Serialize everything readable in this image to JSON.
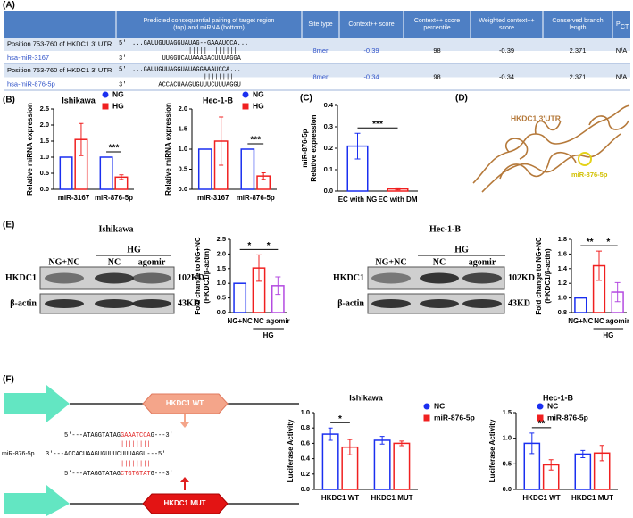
{
  "panel_labels": [
    "(A)",
    "(B)",
    "(C)",
    "(D)",
    "(E)",
    "(F)"
  ],
  "table": {
    "header": [
      "Predicted consequential pairing of target region (top) and miRNA (bottom)",
      "Site type",
      "Context++ score",
      "Context++ score percentile",
      "Weighted context++ score",
      "Conserved branch length"
    ],
    "pct": [
      "P",
      "CT"
    ],
    "rows": [
      {
        "position": "Position 753-760 of HKDC1 3' UTR",
        "mirna": "hsa-miR-3167",
        "target_end": "5'",
        "target": "...GAUUGUUAGGUAUAG--GAAAUCCA...",
        "pairing": "|||||  ||||||",
        "mirna_end": "3'",
        "mirna_seq": "UUGGUCAUAAAGACUUUAGGA",
        "cells": [
          "8mer",
          "-0.39",
          "98",
          "-0.39",
          "2.371",
          "N/A"
        ]
      },
      {
        "position": "Position 753-760 of HKDC1 3' UTR",
        "mirna": "hsa-miR-876-5p",
        "target_end": "5'",
        "target": "...GAUUGUUAGGUAUAGGAAAUCCA...",
        "pairing": "||||||||",
        "mirna_end": "3'",
        "mirna_seq": "ACCACUAAGUGUUUCUUUAGGU",
        "cells": [
          "8mer",
          "-0.34",
          "98",
          "-0.34",
          "2.371",
          "N/A"
        ]
      }
    ]
  },
  "D": {
    "structure": "HKDC1 3'UTR",
    "mirna": "miR-876-5p"
  },
  "E": {
    "blots": [
      {
        "cell": "Ishikawa",
        "lanes": [
          "NG+NC",
          "NC",
          "agomir"
        ],
        "group": "HG",
        "proteins": [
          "HKDC1",
          "β-actin"
        ],
        "sizes": [
          "102KD",
          "43KD"
        ]
      },
      {
        "cell": "Hec-1-B",
        "lanes": [
          "NG+NC",
          "NC",
          "agomir"
        ],
        "group": "HG",
        "proteins": [
          "HKDC1",
          "β-actin"
        ],
        "sizes": [
          "102KD",
          "43KD"
        ]
      }
    ]
  },
  "F": {
    "wt": "HKDC1 WT",
    "mut": "HKDC1 MUT",
    "mirna": "miR-876-5p",
    "wt_seq": [
      "5'---ATAGGTATAG",
      "GAAATCCA",
      "G---3'"
    ],
    "pairings": [
      "||||||||",
      "||||||||"
    ],
    "mirna_seq": "3'---ACCACUAAGUGUUUCUUUAGGU---5'",
    "mut_seq": [
      "5'---ATAGGTATAG",
      "CTGTGTAT",
      "G---3'"
    ]
  },
  "chart_data": [
    {
      "type": "bar",
      "title": "Ishikawa",
      "y_label": [
        "Relative miRNA expression"
      ],
      "categories": [
        "miR-3167",
        "miR-876-5p"
      ],
      "series": [
        {
          "name": "NG",
          "color": "#1a2ff0",
          "values": [
            1.0,
            1.0
          ],
          "errors": [
            0,
            0
          ]
        },
        {
          "name": "HG",
          "color": "#f02020",
          "values": [
            1.55,
            0.38
          ],
          "errors": [
            0.5,
            0.07
          ]
        }
      ],
      "ylim": [
        0,
        2.5
      ],
      "yticks": [
        {
          "value": 0,
          "label": "0.0"
        },
        0.5,
        {
          "value": 1,
          "label": "1.0"
        },
        1.5,
        {
          "value": 2,
          "label": "2.0"
        },
        2.5
      ],
      "legend": "upper right",
      "annotations": [
        "***"
      ]
    },
    {
      "type": "bar",
      "title": "Hec-1-B",
      "y_label": [
        "Relative miRNA expression"
      ],
      "categories": [
        "miR-3167",
        "miR-876-5p"
      ],
      "series": [
        {
          "name": "NG",
          "color": "#1a2ff0",
          "values": [
            1.0,
            1.0
          ],
          "errors": [
            0,
            0
          ]
        },
        {
          "name": "HG",
          "color": "#f02020",
          "values": [
            1.2,
            0.33
          ],
          "errors": [
            0.6,
            0.08
          ]
        }
      ],
      "ylim": [
        0,
        2
      ],
      "yticks": [
        {
          "value": 0,
          "label": "0.0"
        },
        0.5,
        {
          "value": 1,
          "label": "1.0"
        },
        1.5,
        {
          "value": 2,
          "label": "2.0"
        }
      ],
      "legend": "upper right",
      "annotations": [
        "***"
      ]
    },
    {
      "type": "bar",
      "y_label": [
        "miR-876-5p",
        "Relative expression"
      ],
      "categories": [
        "EC with NG",
        "EC with DM"
      ],
      "values": [
        0.21,
        0.01
      ],
      "errors": [
        0.06,
        0.005
      ],
      "colors": [
        "#1a2ff0",
        "#f02020"
      ],
      "ylim": [
        0,
        0.4
      ],
      "yticks": [
        {
          "value": 0,
          "label": "0.0"
        },
        0.1,
        0.2,
        0.3,
        0.4
      ],
      "annotations": [
        "***"
      ]
    },
    {
      "type": "bar",
      "y_label": [
        "Fold change to NG+NC",
        "(HKDC1/β-actin)"
      ],
      "categories": [
        "NG+NC",
        "NC",
        "agomir"
      ],
      "values": [
        1.0,
        1.52,
        0.92
      ],
      "errors": [
        0,
        0.45,
        0.3
      ],
      "colors": [
        "#1a2ff0",
        "#f02020",
        "#b44be1"
      ],
      "group_label": "HG",
      "ylim": [
        0,
        2.5
      ],
      "yticks": [
        {
          "value": 0,
          "label": "0.0"
        },
        0.5,
        {
          "value": 1,
          "label": "1.0"
        },
        1.5,
        {
          "value": 2,
          "label": "2.0"
        },
        2.5
      ],
      "annotations": [
        "*",
        "*"
      ]
    },
    {
      "type": "bar",
      "y_label": [
        "Fold change to NG+NC",
        "(HKDC1/β-actin)"
      ],
      "categories": [
        "NG+NC",
        "NC",
        "agomir"
      ],
      "values": [
        1.0,
        1.44,
        1.08
      ],
      "errors": [
        0,
        0.2,
        0.13
      ],
      "colors": [
        "#1a2ff0",
        "#f02020",
        "#b44be1"
      ],
      "group_label": "HG",
      "ylim": [
        0.8,
        1.8
      ],
      "yticks": [
        0.8,
        {
          "value": 1,
          "label": "1.0"
        },
        1.2,
        1.4,
        1.6,
        1.8
      ],
      "annotations": [
        "**",
        "*"
      ]
    },
    {
      "type": "bar",
      "title": "Ishikawa",
      "y_label": [
        "Luciferase Activity"
      ],
      "categories": [
        "HKDC1 WT",
        "HKDC1 MUT"
      ],
      "series": [
        {
          "name": "NC",
          "color": "#1a2ff0",
          "values": [
            0.72,
            0.64
          ],
          "errors": [
            0.08,
            0.05
          ]
        },
        {
          "name": "miR-876-5p",
          "color": "#f02020",
          "values": [
            0.55,
            0.6
          ],
          "errors": [
            0.1,
            0.03
          ]
        }
      ],
      "ylim": [
        0,
        1
      ],
      "yticks": [
        {
          "value": 0,
          "label": "0.0"
        },
        0.2,
        0.4,
        0.6,
        0.8,
        {
          "value": 1,
          "label": "1.0"
        }
      ],
      "legend": "upper right",
      "annotations": [
        "*"
      ]
    },
    {
      "type": "bar",
      "title": "Hec-1-B",
      "y_label": [
        "Luciferase Activity"
      ],
      "categories": [
        "HKDC1 WT",
        "HKDC1 MUT"
      ],
      "series": [
        {
          "name": "NC",
          "color": "#1a2ff0",
          "values": [
            0.9,
            0.69
          ],
          "errors": [
            0.2,
            0.07
          ]
        },
        {
          "name": "miR-876-5p",
          "color": "#f02020",
          "values": [
            0.48,
            0.71
          ],
          "errors": [
            0.1,
            0.15
          ]
        }
      ],
      "ylim": [
        0,
        1.5
      ],
      "yticks": [
        {
          "value": 0,
          "label": "0.0"
        },
        0.5,
        {
          "value": 1,
          "label": "1.0"
        },
        1.5
      ],
      "legend": "upper right",
      "annotations": [
        "**"
      ]
    }
  ]
}
